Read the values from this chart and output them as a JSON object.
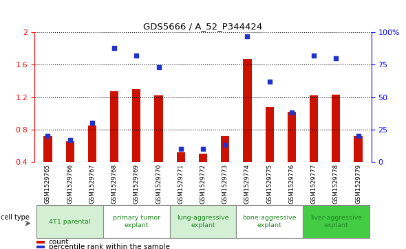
{
  "title": "GDS5666 / A_52_P344424",
  "samples": [
    "GSM1529765",
    "GSM1529766",
    "GSM1529767",
    "GSM1529768",
    "GSM1529769",
    "GSM1529770",
    "GSM1529771",
    "GSM1529772",
    "GSM1529773",
    "GSM1529774",
    "GSM1529775",
    "GSM1529776",
    "GSM1529777",
    "GSM1529778",
    "GSM1529779"
  ],
  "counts": [
    0.72,
    0.65,
    0.85,
    1.27,
    1.3,
    1.22,
    0.52,
    0.5,
    0.72,
    1.67,
    1.08,
    1.02,
    1.22,
    1.23,
    0.72
  ],
  "percentiles": [
    20,
    17,
    30,
    88,
    82,
    73,
    10,
    10,
    13,
    97,
    62,
    38,
    82,
    80,
    20
  ],
  "cell_types": [
    {
      "label": "4T1 parental",
      "start": 0,
      "end": 3,
      "color": "#d4f0d4"
    },
    {
      "label": "primary tumor\nexplant",
      "start": 3,
      "end": 6,
      "color": "#ffffff"
    },
    {
      "label": "lung-aggressive\nexplant",
      "start": 6,
      "end": 9,
      "color": "#d4f0d4"
    },
    {
      "label": "bone-aggressive\nexplant",
      "start": 9,
      "end": 12,
      "color": "#ffffff"
    },
    {
      "label": "liver-aggressive\nexplant",
      "start": 12,
      "end": 15,
      "color": "#44cc44"
    }
  ],
  "ylim_left": [
    0.4,
    2.0
  ],
  "ylim_right": [
    0,
    100
  ],
  "bar_color": "#cc1100",
  "dot_color": "#2233cc",
  "bar_width": 0.38,
  "legend_count_label": "count",
  "legend_pct_label": "percentile rank within the sample",
  "right_yticks": [
    0,
    25,
    50,
    75,
    100
  ],
  "right_yticklabels": [
    "0",
    "25",
    "50",
    "75",
    "100%"
  ],
  "left_yticks": [
    0.4,
    0.8,
    1.2,
    1.6,
    2.0
  ],
  "left_yticklabels": [
    "0.4",
    "0.8",
    "1.2",
    "1.6",
    "2"
  ],
  "gsm_bg_color": "#cccccc",
  "cell_type_label_color": "#228822"
}
